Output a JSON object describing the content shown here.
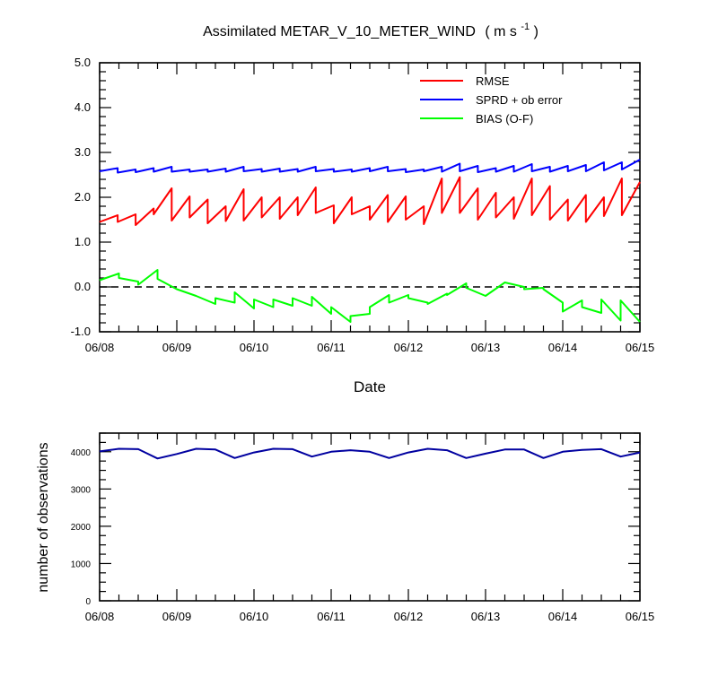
{
  "chart_data": [
    {
      "type": "line",
      "title": "Assimilated METAR_V_10_METER_WIND",
      "title_units": {
        "open": "( m s",
        "superscript": "-1",
        "close": " )"
      },
      "xlabel": "Date",
      "ylabel": "",
      "x_tick_labels": [
        "06/08",
        "06/09",
        "06/10",
        "06/11",
        "06/12",
        "06/13",
        "06/14",
        "06/15"
      ],
      "y_tick_labels": [
        "-1.0",
        "0.0",
        "1.0",
        "2.0",
        "3.0",
        "4.0",
        "5.0"
      ],
      "xlim": [
        0,
        7
      ],
      "ylim": [
        -1.0,
        5.0
      ],
      "x_unit": "days since 06/08",
      "legend_position": "top-right",
      "reference_line": {
        "y": 0,
        "style": "dashed",
        "color": "#000000"
      },
      "series": [
        {
          "name": "RMSE",
          "color": "#ff0000",
          "sawtooth": true,
          "segments": [
            [
              1.45,
              1.6
            ],
            [
              1.45,
              1.62
            ],
            [
              1.38,
              1.75
            ],
            [
              1.62,
              2.2
            ],
            [
              1.48,
              2.02
            ],
            [
              1.55,
              1.95
            ],
            [
              1.42,
              1.8
            ],
            [
              1.47,
              2.18
            ],
            [
              1.48,
              2.0
            ],
            [
              1.55,
              2.0
            ],
            [
              1.52,
              2.0
            ],
            [
              1.6,
              2.22
            ],
            [
              1.65,
              1.82
            ],
            [
              1.42,
              2.0
            ],
            [
              1.62,
              1.8
            ],
            [
              1.5,
              2.05
            ],
            [
              1.45,
              2.02
            ],
            [
              1.5,
              1.8
            ],
            [
              1.4,
              2.42
            ],
            [
              1.65,
              2.45
            ],
            [
              1.65,
              2.2
            ],
            [
              1.5,
              2.1
            ],
            [
              1.55,
              2.0
            ],
            [
              1.52,
              2.42
            ],
            [
              1.6,
              2.25
            ],
            [
              1.5,
              1.95
            ],
            [
              1.48,
              2.05
            ],
            [
              1.45,
              2.0
            ],
            [
              1.58,
              2.42
            ],
            [
              1.6,
              2.34
            ]
          ]
        },
        {
          "name": "SPRD + ob error",
          "color": "#0000ff",
          "sawtooth": true,
          "segments": [
            [
              2.58,
              2.65
            ],
            [
              2.55,
              2.62
            ],
            [
              2.56,
              2.65
            ],
            [
              2.57,
              2.68
            ],
            [
              2.57,
              2.62
            ],
            [
              2.57,
              2.62
            ],
            [
              2.57,
              2.64
            ],
            [
              2.57,
              2.68
            ],
            [
              2.58,
              2.63
            ],
            [
              2.57,
              2.64
            ],
            [
              2.57,
              2.63
            ],
            [
              2.57,
              2.68
            ],
            [
              2.58,
              2.63
            ],
            [
              2.57,
              2.62
            ],
            [
              2.57,
              2.65
            ],
            [
              2.58,
              2.68
            ],
            [
              2.58,
              2.63
            ],
            [
              2.56,
              2.62
            ],
            [
              2.58,
              2.68
            ],
            [
              2.57,
              2.75
            ],
            [
              2.58,
              2.7
            ],
            [
              2.56,
              2.65
            ],
            [
              2.57,
              2.7
            ],
            [
              2.57,
              2.74
            ],
            [
              2.58,
              2.68
            ],
            [
              2.57,
              2.7
            ],
            [
              2.58,
              2.72
            ],
            [
              2.58,
              2.78
            ],
            [
              2.6,
              2.78
            ],
            [
              2.62,
              2.84
            ]
          ]
        },
        {
          "name": "BIAS (O-F)",
          "color": "#00ff00",
          "x": [
            0.0,
            0.25,
            0.25,
            0.5,
            0.5,
            0.75,
            0.75,
            1.0,
            1.25,
            1.5,
            1.5,
            1.75,
            1.75,
            2.0,
            2.0,
            2.25,
            2.25,
            2.5,
            2.5,
            2.75,
            2.75,
            3.0,
            3.0,
            3.25,
            3.25,
            3.5,
            3.5,
            3.75,
            3.75,
            4.0,
            4.0,
            4.25,
            4.25,
            4.5,
            4.5,
            4.75,
            4.75,
            5.0,
            5.25,
            5.5,
            5.5,
            5.75,
            5.75,
            6.0,
            6.0,
            6.25,
            6.25,
            6.5,
            6.5,
            6.75,
            6.75,
            7.0
          ],
          "values": [
            0.15,
            0.3,
            0.2,
            0.12,
            0.05,
            0.38,
            0.18,
            -0.05,
            -0.2,
            -0.38,
            -0.25,
            -0.35,
            -0.12,
            -0.48,
            -0.28,
            -0.45,
            -0.28,
            -0.42,
            -0.25,
            -0.42,
            -0.22,
            -0.6,
            -0.45,
            -0.78,
            -0.65,
            -0.6,
            -0.45,
            -0.18,
            -0.35,
            -0.18,
            -0.25,
            -0.35,
            -0.38,
            -0.15,
            -0.18,
            0.08,
            -0.02,
            -0.2,
            0.1,
            0.0,
            -0.05,
            -0.02,
            -0.05,
            -0.35,
            -0.55,
            -0.3,
            -0.45,
            -0.58,
            -0.28,
            -0.75,
            -0.3,
            -0.78
          ]
        }
      ]
    },
    {
      "type": "line",
      "title": "",
      "xlabel": "",
      "ylabel": "number of observations",
      "x_tick_labels": [
        "06/08",
        "06/09",
        "06/10",
        "06/11",
        "06/12",
        "06/13",
        "06/14",
        "06/15"
      ],
      "y_tick_labels": [
        "0",
        "1000",
        "2000",
        "3000",
        "4000"
      ],
      "xlim": [
        0,
        7
      ],
      "ylim": [
        0,
        4500
      ],
      "x_unit": "days since 06/08",
      "series": [
        {
          "name": "",
          "color": "#0000a0",
          "x": [
            0,
            0.25,
            0.5,
            0.75,
            1.0,
            1.25,
            1.5,
            1.75,
            2.0,
            2.25,
            2.5,
            2.75,
            3.0,
            3.25,
            3.5,
            3.75,
            4.0,
            4.25,
            4.5,
            4.75,
            5.0,
            5.25,
            5.5,
            5.75,
            6.0,
            6.25,
            6.5,
            6.75,
            7.0
          ],
          "values": [
            4010,
            4080,
            4070,
            3820,
            3940,
            4080,
            4060,
            3830,
            3980,
            4080,
            4070,
            3870,
            4000,
            4040,
            4000,
            3830,
            3980,
            4080,
            4040,
            3830,
            3950,
            4060,
            4060,
            3830,
            4000,
            4050,
            4070,
            3870,
            3980
          ]
        }
      ]
    }
  ]
}
